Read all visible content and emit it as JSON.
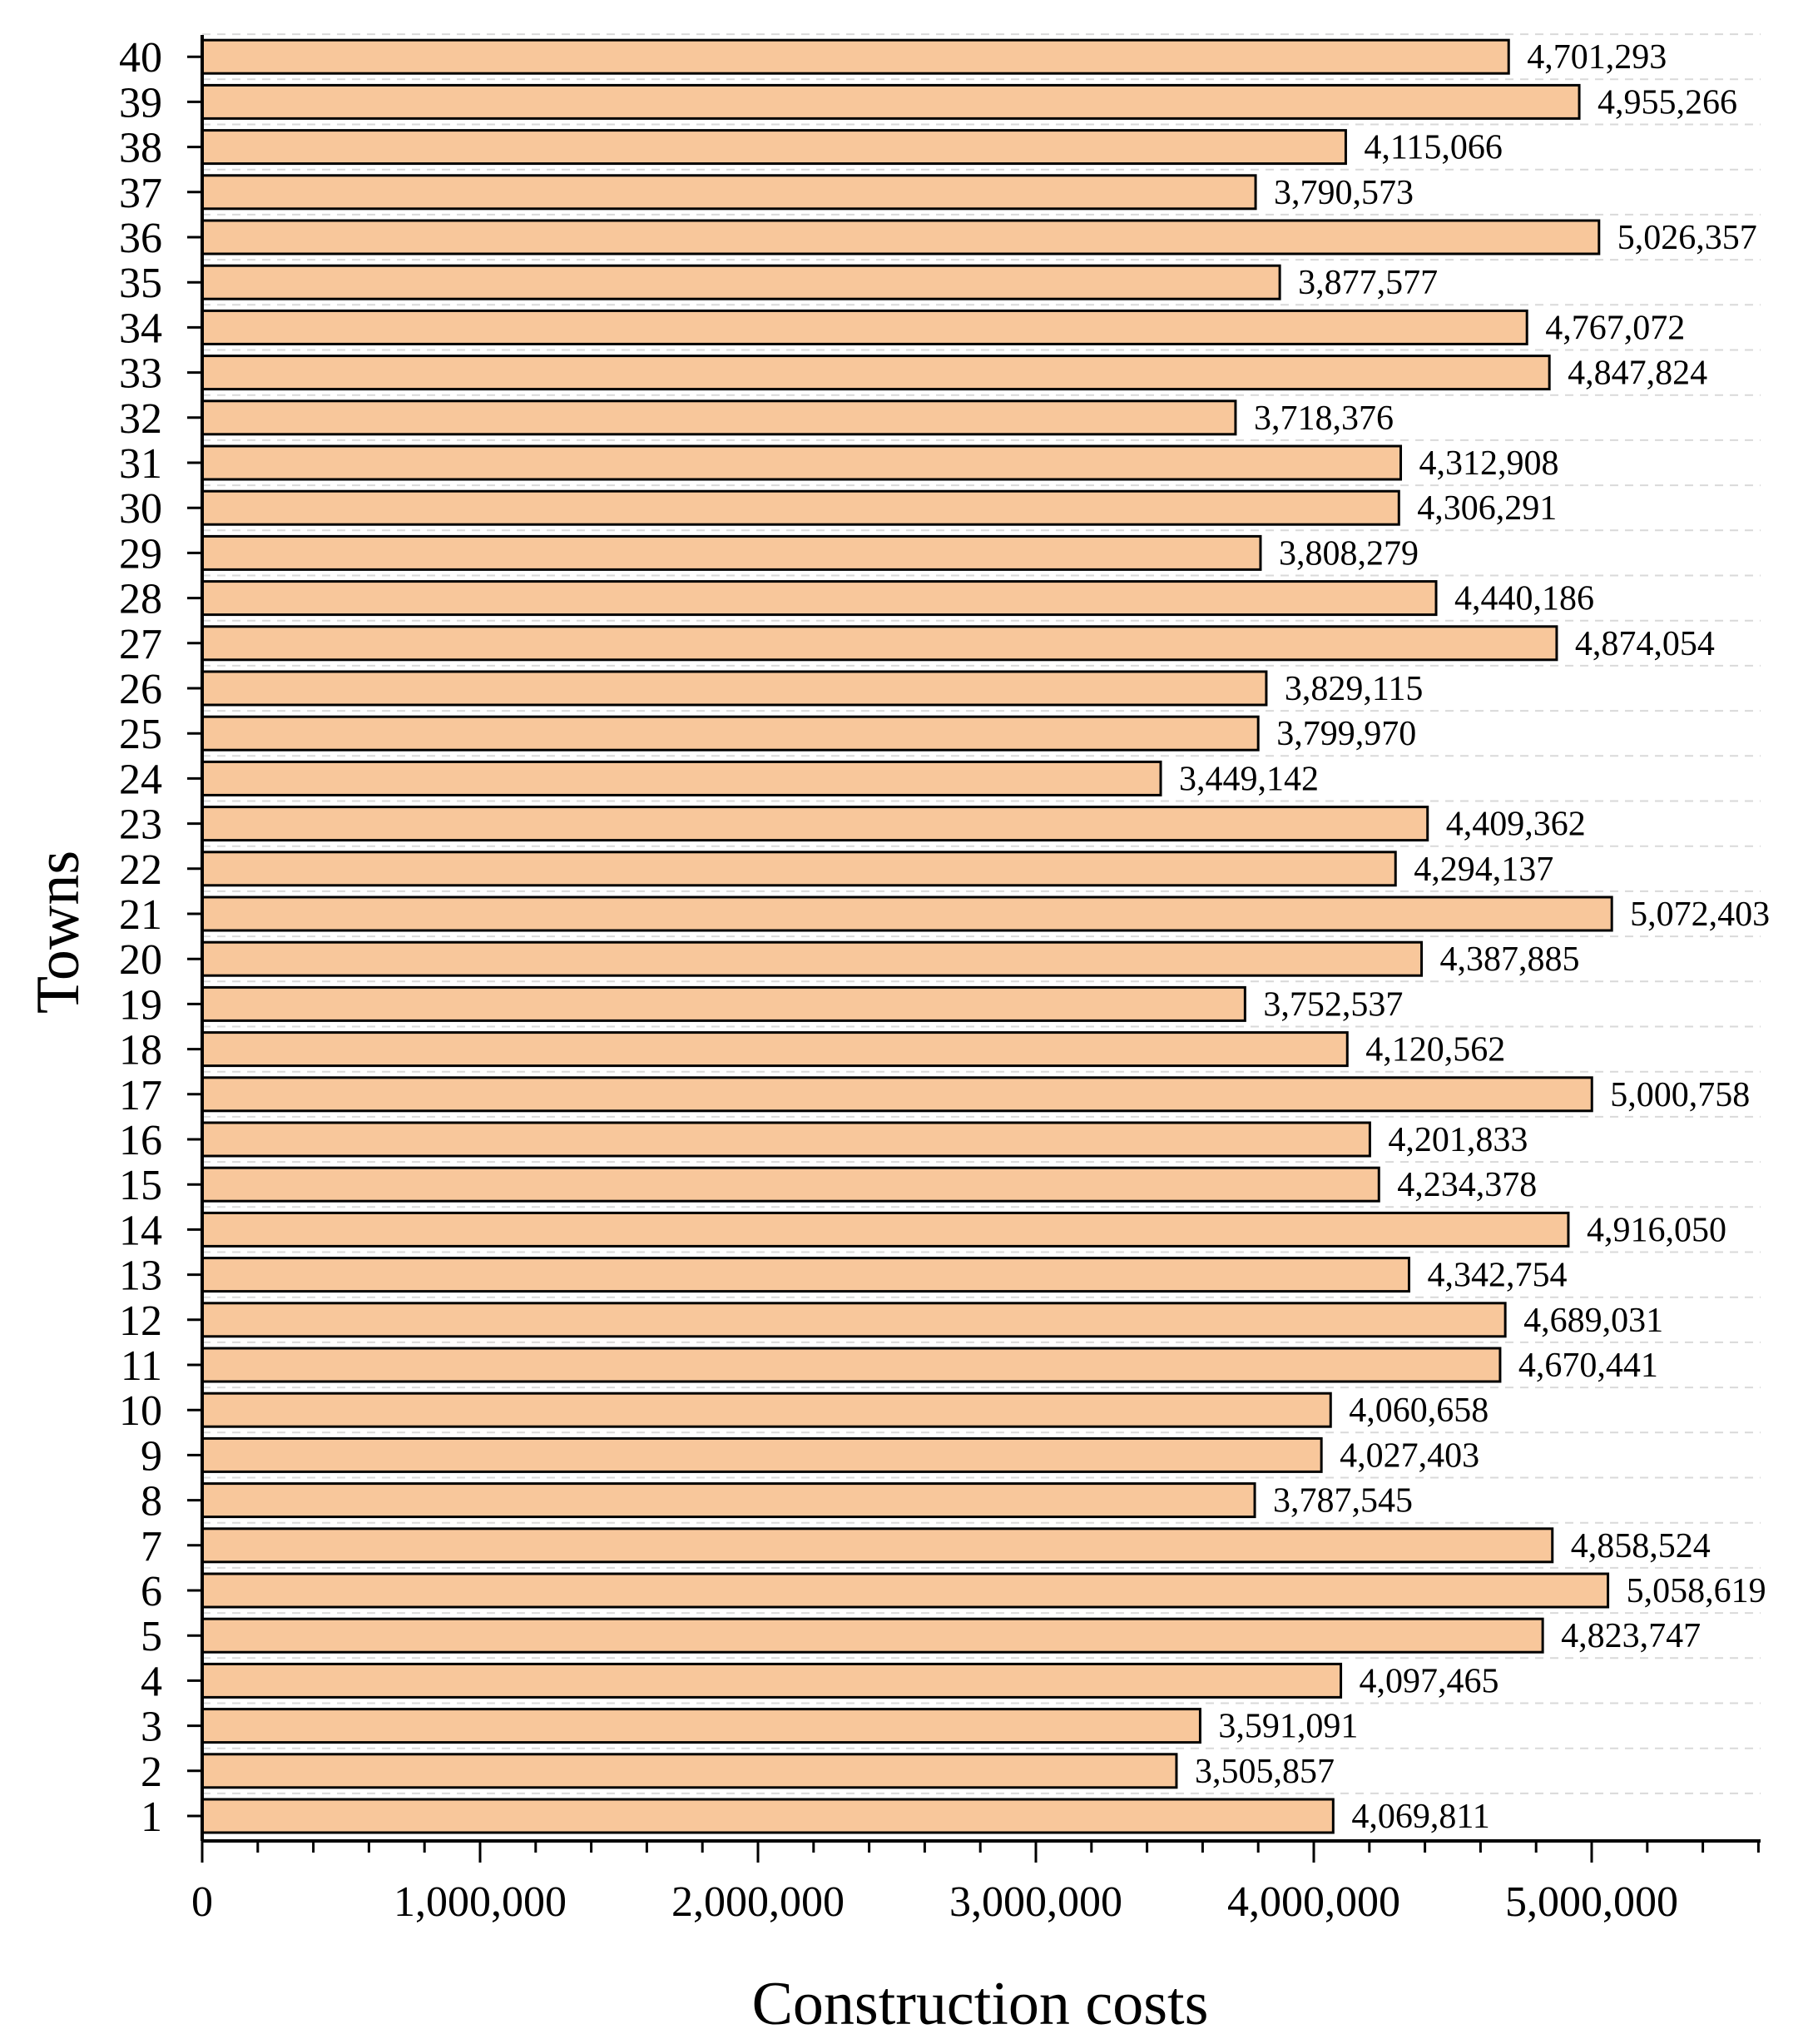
{
  "chart_data": {
    "type": "bar",
    "orientation": "horizontal",
    "xlabel": "Construction costs",
    "ylabel": "Towns",
    "categories": [
      "1",
      "2",
      "3",
      "4",
      "5",
      "6",
      "7",
      "8",
      "9",
      "10",
      "11",
      "12",
      "13",
      "14",
      "15",
      "16",
      "17",
      "18",
      "19",
      "20",
      "21",
      "22",
      "23",
      "24",
      "25",
      "26",
      "27",
      "28",
      "29",
      "30",
      "31",
      "32",
      "33",
      "34",
      "35",
      "36",
      "37",
      "38",
      "39",
      "40"
    ],
    "values": [
      4069811,
      3505857,
      3591091,
      4097465,
      4823747,
      5058619,
      4858524,
      3787545,
      4027403,
      4060658,
      4670441,
      4689031,
      4342754,
      4916050,
      4234378,
      4201833,
      5000758,
      4120562,
      3752537,
      4387885,
      5072403,
      4294137,
      4409362,
      3449142,
      3799970,
      3829115,
      4874054,
      4440186,
      3808279,
      4306291,
      4312908,
      3718376,
      4847824,
      4767072,
      3877577,
      5026357,
      3790573,
      4115066,
      4955266,
      4701293
    ],
    "value_labels": [
      "4,069,811",
      "3,505,857",
      "3,591,091",
      "4,097,465",
      "4,823,747",
      "5,058,619",
      "4,858,524",
      "3,787,545",
      "4,027,403",
      "4,060,658",
      "4,670,441",
      "4,689,031",
      "4,342,754",
      "4,916,050",
      "4,234,378",
      "4,201,833",
      "5,000,758",
      "4,120,562",
      "3,752,537",
      "4,387,885",
      "5,072,403",
      "4,294,137",
      "4,409,362",
      "3,449,142",
      "3,799,970",
      "3,829,115",
      "4,874,054",
      "4,440,186",
      "3,808,279",
      "4,306,291",
      "4,312,908",
      "3,718,376",
      "4,847,824",
      "4,767,072",
      "3,877,577",
      "5,026,357",
      "3,790,573",
      "4,115,066",
      "4,955,266",
      "4,701,293"
    ],
    "xticks": [
      0,
      1000000,
      2000000,
      3000000,
      4000000,
      5000000
    ],
    "xtick_labels": [
      "0",
      "1,000,000",
      "2,000,000",
      "3,000,000",
      "4,000,000",
      "5,000,000"
    ],
    "xlim": [
      0,
      5600000
    ],
    "grid": "horizontal dashed",
    "bar_color": "#F8C79B",
    "bar_edge_color": "#000000"
  }
}
